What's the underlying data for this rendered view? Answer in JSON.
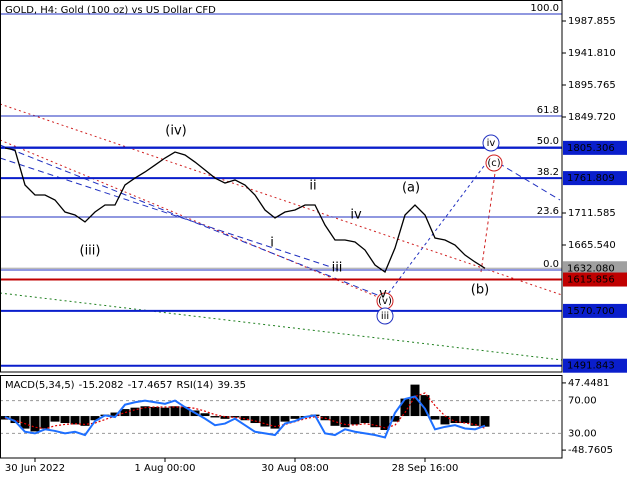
{
  "chart_data": [
    {
      "type": "line",
      "title": "GOLD, H4:  Gold (100 oz) vs US Dollar CFD",
      "categories": [
        null,
        null,
        null,
        "30 Jun 2022",
        null,
        null,
        null,
        null,
        null,
        null,
        null,
        null,
        null,
        null,
        null,
        null,
        "1 Aug 00:00",
        null,
        null,
        null,
        null,
        null,
        null,
        null,
        null,
        null,
        null,
        null,
        null,
        "30 Aug 08:00",
        null,
        null,
        null,
        null,
        null,
        null,
        null,
        null,
        null,
        null,
        null,
        null,
        "28 Sep 16:00",
        null,
        null,
        null,
        null,
        null,
        null
      ],
      "series": [
        {
          "color": "#000000",
          "values": [
            1805.1,
            1802.2,
            1751.9,
            1737.5,
            1737.5,
            1730.3,
            1713.0,
            1708.7,
            1698.7,
            1713.0,
            1723.1,
            1723.1,
            1751.9,
            1761.9,
            1770.6,
            1780.6,
            1790.7,
            1799.3,
            1795.0,
            1784.9,
            1773.5,
            1761.9,
            1754.7,
            1759.1,
            1751.9,
            1737.5,
            1715.9,
            1704.4,
            1713.0,
            1715.9,
            1723.1,
            1723.1,
            1694.3,
            1672.7,
            1672.7,
            1669.8,
            1658.3,
            1636.7,
            1626.7,
            1661.2,
            1708.7,
            1723.1,
            1708.7,
            1675.6,
            1672.7,
            1665.5,
            1651.1,
            1641.1,
            1632.08
          ]
        }
      ],
      "ylim": [
        1482.8,
        2018.07
      ],
      "yticks": [
        1987.855,
        {
          "value": 1941.81,
          "label": "1941.810"
        },
        1895.765,
        {
          "value": 1849.72,
          "label": "1849.720"
        },
        1711.585,
        {
          "value": 1665.54,
          "label": "1665.540"
        }
      ],
      "price_levels": [
        {
          "value": 1805.306,
          "color": "#0a1ecc"
        },
        {
          "value": 1761.809,
          "color": "#0a1ecc"
        },
        {
          "value": 1632.08,
          "label": "1632.080",
          "color": "#a0a0a0"
        },
        {
          "value": 1615.856,
          "color": "#c00000"
        },
        {
          "value": 1570.7,
          "label": "1570.700",
          "color": "#0a1ecc"
        },
        {
          "value": 1491.843,
          "color": "#0a1ecc"
        }
      ],
      "fib_levels": [
        {
          "name": "100.0",
          "price": 1997.9
        },
        {
          "name": "61.8",
          "price": 1851.1
        },
        {
          "name": "50.0",
          "price": 1806.5
        },
        {
          "name": "38.2",
          "price": 1761.9
        },
        {
          "name": "23.6",
          "price": 1705.8
        },
        {
          "name": "0.0",
          "price": 1629.5
        }
      ],
      "wave_labels": [
        {
          "text": "(iii)",
          "color": "#d02020"
        },
        {
          "text": "(iv)",
          "color": "#d02020"
        },
        {
          "text": "(a)",
          "color": "#d02020"
        },
        {
          "text": "(b)",
          "color": "#d02020"
        },
        {
          "text": "(c)",
          "color": "#d02020"
        },
        {
          "text": "(v)",
          "color": "#d02020"
        },
        {
          "text": "iv",
          "color": "#2030c0"
        },
        {
          "text": "iii",
          "color": "#2030c0"
        },
        {
          "text": "i",
          "color": "#808080"
        },
        {
          "text": "ii",
          "color": "#808080"
        },
        {
          "text": "iii",
          "color": "#808080"
        },
        {
          "text": "iv",
          "color": "#808080"
        },
        {
          "text": "v",
          "color": "#808080"
        }
      ]
    },
    {
      "type": "macd",
      "macd_label": "MACD(5,34,5)",
      "rsi_label": "RSI(14)",
      "series": [
        {
          "color": "#000000",
          "values": [
            -5,
            -10,
            -18,
            -22,
            -18,
            -8,
            -10,
            -12,
            -14,
            -6,
            2,
            5,
            10,
            12,
            14,
            13,
            12,
            14,
            13,
            8,
            4,
            -2,
            -4,
            -2,
            -6,
            -10,
            -15,
            -18,
            -8,
            -4,
            -2,
            2,
            -6,
            -14,
            -16,
            -12,
            -10,
            -16,
            -20,
            -8,
            25,
            45,
            30,
            -5,
            -12,
            -10,
            -10,
            -14,
            -15.2082
          ]
        },
        {
          "color": "#e00000",
          "values": [
            -3,
            -6,
            -11,
            -16,
            -18,
            -14,
            -12,
            -11,
            -12,
            -10,
            -5,
            0,
            5,
            9,
            12,
            13,
            13,
            13,
            13,
            11,
            7,
            2,
            -1,
            -2,
            -4,
            -7,
            -11,
            -15,
            -12,
            -8,
            -4,
            -1,
            -3,
            -8,
            -12,
            -13,
            -11,
            -13,
            -17,
            -13,
            5,
            28,
            33,
            15,
            0,
            -8,
            -10,
            -12,
            -17.4657
          ]
        },
        {
          "color": "#1e6fff",
          "axis": "y2",
          "values": [
            50,
            45,
            32,
            30,
            35,
            33,
            30,
            32,
            28,
            45,
            52,
            50,
            65,
            68,
            70,
            68,
            66,
            70,
            62,
            55,
            48,
            40,
            42,
            48,
            40,
            32,
            30,
            28,
            42,
            45,
            50,
            52,
            30,
            28,
            35,
            32,
            30,
            28,
            25,
            55,
            72,
            75,
            60,
            35,
            38,
            40,
            36,
            35,
            39.35
          ]
        }
      ],
      "ylim": [
        -60.08,
        57.35
      ],
      "yticks": [
        47.4481,
        -48.7605
      ],
      "y2lim": [
        0,
        100
      ],
      "y2ticks": [
        {
          "value": 70,
          "label": "70.00"
        },
        {
          "value": 30,
          "label": "30.00"
        }
      ]
    }
  ]
}
